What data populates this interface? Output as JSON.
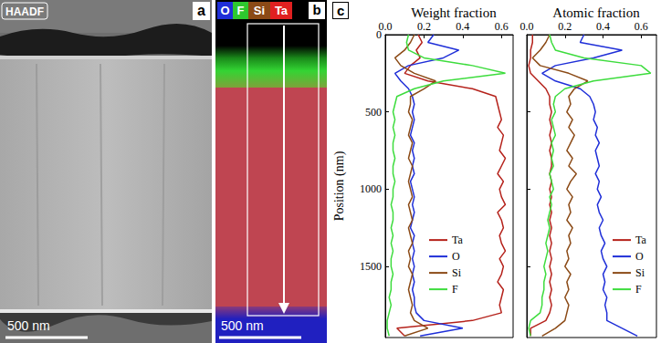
{
  "panels": [
    {
      "letter": "a",
      "label": "HAADF",
      "scale_bar": "500 nm"
    },
    {
      "letter": "b",
      "elements": [
        "O",
        "F",
        "Si",
        "Ta"
      ],
      "element_colors": [
        "#1f2fd8",
        "#2ec82e",
        "#8b4a16",
        "#e02020"
      ],
      "scale_bar": "500 nm"
    }
  ],
  "panel_letter": "c",
  "chart_data": [
    {
      "type": "line",
      "title": "Weight fraction",
      "ylabel": "Position (nm)",
      "y": [
        0,
        50,
        100,
        150,
        200,
        250,
        300,
        350,
        400,
        450,
        500,
        550,
        600,
        650,
        700,
        750,
        800,
        850,
        900,
        950,
        1000,
        1050,
        1100,
        1150,
        1200,
        1250,
        1300,
        1350,
        1400,
        1450,
        1500,
        1550,
        1600,
        1650,
        1700,
        1750,
        1800,
        1850,
        1900,
        1950
      ],
      "xlim": [
        0,
        0.66
      ],
      "xticks": [
        {
          "value": 0,
          "label": "0.0"
        },
        0.2,
        0.4,
        0.6
      ],
      "ylim": [
        0,
        1960
      ],
      "yticks": [
        0,
        500,
        1000,
        1500
      ],
      "grid": false,
      "legend": "lower center",
      "series": [
        {
          "name": "Ta",
          "color": "#b5221b",
          "values": [
            0.17,
            0.19,
            0.16,
            0.18,
            0.13,
            0.1,
            0.22,
            0.45,
            0.57,
            0.58,
            0.59,
            0.6,
            0.58,
            0.61,
            0.6,
            0.59,
            0.62,
            0.6,
            0.58,
            0.61,
            0.59,
            0.6,
            0.62,
            0.58,
            0.6,
            0.61,
            0.59,
            0.6,
            0.62,
            0.59,
            0.61,
            0.6,
            0.58,
            0.61,
            0.6,
            0.59,
            0.6,
            0.45,
            0.06,
            0.1
          ]
        },
        {
          "name": "O",
          "color": "#1f2fd8",
          "values": [
            0.25,
            0.22,
            0.38,
            0.3,
            0.12,
            0.05,
            0.08,
            0.12,
            0.14,
            0.15,
            0.14,
            0.15,
            0.14,
            0.13,
            0.15,
            0.14,
            0.15,
            0.14,
            0.15,
            0.13,
            0.14,
            0.15,
            0.14,
            0.15,
            0.14,
            0.13,
            0.15,
            0.14,
            0.15,
            0.14,
            0.15,
            0.14,
            0.15,
            0.14,
            0.15,
            0.15,
            0.16,
            0.2,
            0.4,
            0.18
          ]
        },
        {
          "name": "Si",
          "color": "#8b4a16",
          "values": [
            0.15,
            0.13,
            0.1,
            0.05,
            0.08,
            0.15,
            0.26,
            0.2,
            0.13,
            0.13,
            0.12,
            0.14,
            0.13,
            0.12,
            0.14,
            0.13,
            0.12,
            0.14,
            0.13,
            0.12,
            0.13,
            0.14,
            0.12,
            0.13,
            0.14,
            0.12,
            0.13,
            0.14,
            0.12,
            0.13,
            0.12,
            0.14,
            0.13,
            0.12,
            0.13,
            0.14,
            0.13,
            0.15,
            0.22,
            0.1
          ]
        },
        {
          "name": "F",
          "color": "#3ddc3d",
          "values": [
            0.12,
            0.11,
            0.12,
            0.2,
            0.45,
            0.62,
            0.3,
            0.15,
            0.06,
            0.05,
            0.04,
            0.05,
            0.04,
            0.05,
            0.04,
            0.04,
            0.05,
            0.04,
            0.04,
            0.05,
            0.04,
            0.04,
            0.03,
            0.04,
            0.04,
            0.03,
            0.04,
            0.03,
            0.04,
            0.03,
            0.03,
            0.04,
            0.03,
            0.03,
            0.02,
            0.03,
            0.02,
            0.01,
            0.01,
            0.02
          ]
        }
      ]
    },
    {
      "type": "line",
      "title": "Atomic fraction",
      "y": [
        0,
        50,
        100,
        150,
        200,
        250,
        300,
        350,
        400,
        450,
        500,
        550,
        600,
        650,
        700,
        750,
        800,
        850,
        900,
        950,
        1000,
        1050,
        1100,
        1150,
        1200,
        1250,
        1300,
        1350,
        1400,
        1450,
        1500,
        1550,
        1600,
        1650,
        1700,
        1750,
        1800,
        1850,
        1900,
        1950
      ],
      "xlim": [
        0,
        0.68
      ],
      "xticks": [
        {
          "value": 0,
          "label": "0.0"
        },
        0.2,
        0.4,
        0.6
      ],
      "ylim": [
        0,
        1960
      ],
      "yticks": [
        0,
        500,
        1000,
        1500
      ],
      "tick_labels": "x",
      "grid": false,
      "legend": "lower right",
      "series": [
        {
          "name": "Ta",
          "color": "#b5221b",
          "values": [
            0.03,
            0.03,
            0.02,
            0.02,
            0.01,
            0.02,
            0.06,
            0.1,
            0.12,
            0.12,
            0.13,
            0.12,
            0.13,
            0.12,
            0.13,
            0.12,
            0.13,
            0.13,
            0.12,
            0.13,
            0.12,
            0.13,
            0.12,
            0.13,
            0.12,
            0.13,
            0.12,
            0.13,
            0.12,
            0.13,
            0.12,
            0.13,
            0.12,
            0.13,
            0.12,
            0.13,
            0.12,
            0.1,
            0.02,
            0.02
          ]
        },
        {
          "name": "O",
          "color": "#1f2fd8",
          "values": [
            0.3,
            0.28,
            0.5,
            0.35,
            0.15,
            0.08,
            0.15,
            0.28,
            0.33,
            0.35,
            0.36,
            0.35,
            0.37,
            0.36,
            0.38,
            0.36,
            0.37,
            0.38,
            0.36,
            0.38,
            0.37,
            0.39,
            0.37,
            0.38,
            0.4,
            0.38,
            0.39,
            0.41,
            0.39,
            0.4,
            0.42,
            0.4,
            0.41,
            0.4,
            0.42,
            0.41,
            0.42,
            0.42,
            0.5,
            0.58
          ]
        },
        {
          "name": "Si",
          "color": "#8b4a16",
          "values": [
            0.12,
            0.1,
            0.07,
            0.03,
            0.07,
            0.22,
            0.32,
            0.25,
            0.22,
            0.23,
            0.21,
            0.24,
            0.22,
            0.25,
            0.23,
            0.21,
            0.24,
            0.22,
            0.26,
            0.23,
            0.21,
            0.24,
            0.22,
            0.23,
            0.21,
            0.24,
            0.22,
            0.23,
            0.21,
            0.22,
            0.2,
            0.23,
            0.21,
            0.22,
            0.2,
            0.22,
            0.21,
            0.2,
            0.15,
            0.08
          ]
        },
        {
          "name": "F",
          "color": "#3ddc3d",
          "values": [
            0.12,
            0.13,
            0.15,
            0.3,
            0.6,
            0.65,
            0.35,
            0.2,
            0.15,
            0.14,
            0.15,
            0.13,
            0.14,
            0.15,
            0.13,
            0.14,
            0.13,
            0.14,
            0.12,
            0.13,
            0.14,
            0.12,
            0.13,
            0.12,
            0.11,
            0.12,
            0.11,
            0.1,
            0.11,
            0.1,
            0.09,
            0.1,
            0.09,
            0.09,
            0.08,
            0.08,
            0.07,
            0.02,
            0.01,
            0.02
          ]
        }
      ]
    }
  ]
}
